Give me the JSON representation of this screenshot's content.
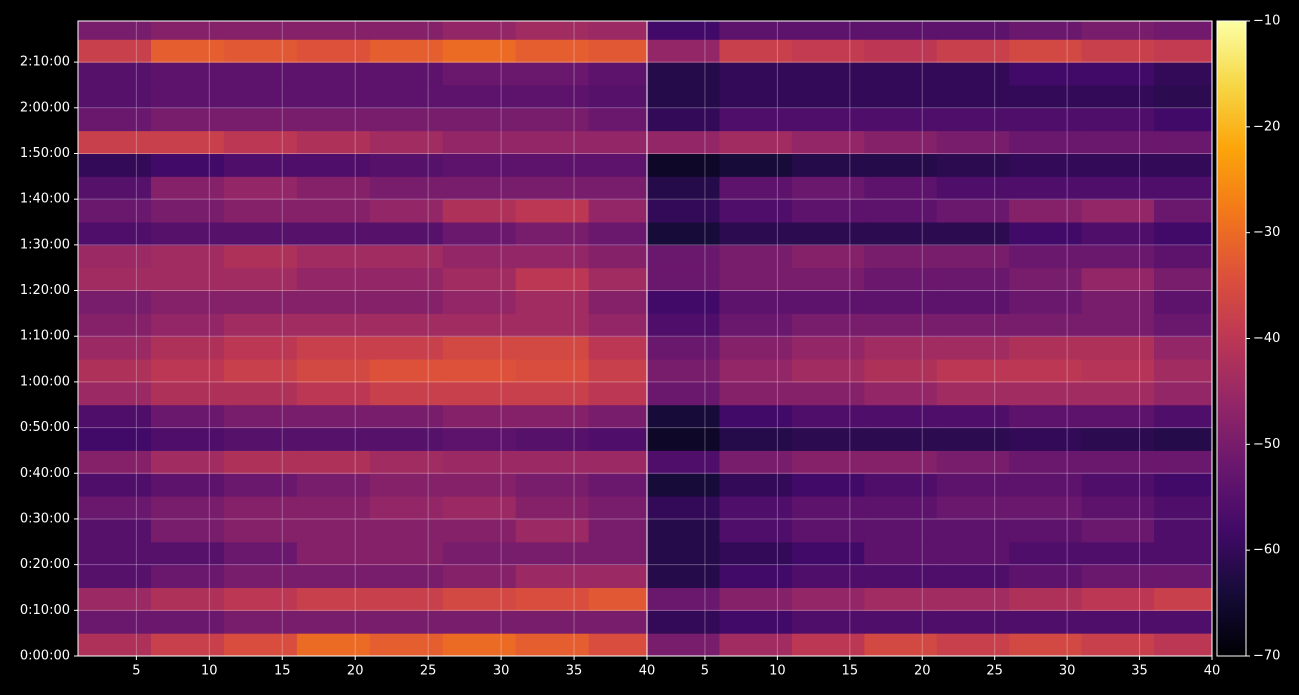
{
  "chart_data": {
    "type": "heatmap",
    "cmap": "inferno",
    "grid": true,
    "ylim": [
      0,
      8340
    ],
    "yticks": [
      {
        "value": 0,
        "label": "0:00:00"
      },
      {
        "value": 600,
        "label": "0:10:00"
      },
      {
        "value": 1200,
        "label": "0:20:00"
      },
      {
        "value": 1800,
        "label": "0:30:00"
      },
      {
        "value": 2400,
        "label": "0:40:00"
      },
      {
        "value": 3000,
        "label": "0:50:00"
      },
      {
        "value": 3600,
        "label": "1:00:00"
      },
      {
        "value": 4200,
        "label": "1:10:00"
      },
      {
        "value": 4800,
        "label": "1:20:00"
      },
      {
        "value": 5400,
        "label": "1:30:00"
      },
      {
        "value": 6000,
        "label": "1:40:00"
      },
      {
        "value": 6600,
        "label": "1:50:00"
      },
      {
        "value": 7200,
        "label": "2:00:00"
      },
      {
        "value": 7800,
        "label": "2:10:00"
      }
    ],
    "y_bins": [
      0,
      300,
      600,
      900,
      1200,
      1500,
      1800,
      2100,
      2400,
      2700,
      3000,
      3300,
      3600,
      3900,
      4200,
      4500,
      4800,
      5100,
      5400,
      5700,
      6000,
      6300,
      6600,
      6900,
      7200,
      7500,
      7800,
      8100,
      8340
    ],
    "colorbar": {
      "lim": [
        -70,
        -10
      ],
      "ticks": [
        {
          "value": -70,
          "label": "−70"
        },
        {
          "value": -60,
          "label": "−60"
        },
        {
          "value": -50,
          "label": "−50"
        },
        {
          "value": -40,
          "label": "−40"
        },
        {
          "value": -30,
          "label": "−30"
        },
        {
          "value": -20,
          "label": "−20"
        },
        {
          "value": -10,
          "label": "−10"
        }
      ]
    },
    "panels": [
      {
        "xlim": [
          1,
          40
        ],
        "xticks": [
          5,
          10,
          15,
          20,
          25,
          30,
          35,
          40
        ],
        "x_bins": [
          1,
          6,
          11,
          16,
          21,
          26,
          31,
          36,
          40
        ],
        "values": [
          [
            -42,
            -38,
            -35,
            -30,
            -32,
            -30,
            -32,
            -35
          ],
          [
            -52,
            -52,
            -50,
            -50,
            -50,
            -50,
            -50,
            -50
          ],
          [
            -45,
            -42,
            -40,
            -38,
            -38,
            -36,
            -35,
            -33
          ],
          [
            -55,
            -52,
            -50,
            -50,
            -50,
            -48,
            -45,
            -45
          ],
          [
            -55,
            -55,
            -52,
            -48,
            -48,
            -50,
            -50,
            -50
          ],
          [
            -55,
            -50,
            -48,
            -48,
            -48,
            -48,
            -45,
            -50
          ],
          [
            -52,
            -50,
            -48,
            -48,
            -46,
            -45,
            -48,
            -50
          ],
          [
            -56,
            -54,
            -52,
            -50,
            -48,
            -48,
            -50,
            -52
          ],
          [
            -48,
            -44,
            -42,
            -42,
            -44,
            -45,
            -45,
            -45
          ],
          [
            -58,
            -56,
            -55,
            -55,
            -55,
            -54,
            -55,
            -56
          ],
          [
            -56,
            -52,
            -50,
            -50,
            -50,
            -48,
            -48,
            -50
          ],
          [
            -45,
            -42,
            -42,
            -40,
            -38,
            -38,
            -38,
            -40
          ],
          [
            -42,
            -40,
            -38,
            -36,
            -34,
            -34,
            -35,
            -38
          ],
          [
            -45,
            -42,
            -40,
            -38,
            -38,
            -36,
            -36,
            -40
          ],
          [
            -48,
            -46,
            -44,
            -44,
            -44,
            -44,
            -44,
            -46
          ],
          [
            -50,
            -48,
            -48,
            -48,
            -48,
            -46,
            -44,
            -48
          ],
          [
            -44,
            -44,
            -44,
            -46,
            -46,
            -44,
            -40,
            -44
          ],
          [
            -45,
            -44,
            -42,
            -44,
            -44,
            -46,
            -46,
            -48
          ],
          [
            -56,
            -55,
            -55,
            -55,
            -55,
            -52,
            -50,
            -52
          ],
          [
            -52,
            -50,
            -48,
            -48,
            -46,
            -42,
            -40,
            -46
          ],
          [
            -55,
            -48,
            -46,
            -48,
            -50,
            -50,
            -50,
            -50
          ],
          [
            -60,
            -58,
            -56,
            -56,
            -55,
            -54,
            -54,
            -54
          ],
          [
            -38,
            -38,
            -40,
            -42,
            -44,
            -46,
            -46,
            -46
          ],
          [
            -52,
            -50,
            -50,
            -50,
            -50,
            -50,
            -50,
            -52
          ],
          [
            -55,
            -54,
            -54,
            -54,
            -54,
            -54,
            -54,
            -55
          ],
          [
            -55,
            -54,
            -54,
            -54,
            -54,
            -52,
            -52,
            -54
          ],
          [
            -38,
            -32,
            -33,
            -34,
            -32,
            -30,
            -32,
            -33
          ],
          [
            -50,
            -48,
            -48,
            -48,
            -48,
            -46,
            -44,
            -45
          ]
        ]
      },
      {
        "xlim": [
          1,
          40
        ],
        "xticks": [
          5,
          10,
          15,
          20,
          25,
          30,
          35,
          40
        ],
        "x_bins": [
          1,
          6,
          11,
          16,
          21,
          26,
          31,
          36,
          40
        ],
        "values": [
          [
            -50,
            -44,
            -40,
            -36,
            -38,
            -36,
            -38,
            -40
          ],
          [
            -60,
            -58,
            -56,
            -56,
            -56,
            -56,
            -56,
            -56
          ],
          [
            -52,
            -48,
            -46,
            -44,
            -44,
            -42,
            -40,
            -38
          ],
          [
            -62,
            -58,
            -56,
            -56,
            -56,
            -54,
            -52,
            -52
          ],
          [
            -62,
            -60,
            -58,
            -54,
            -54,
            -56,
            -56,
            -56
          ],
          [
            -62,
            -56,
            -54,
            -54,
            -54,
            -54,
            -52,
            -56
          ],
          [
            -60,
            -56,
            -54,
            -54,
            -52,
            -52,
            -54,
            -56
          ],
          [
            -64,
            -60,
            -58,
            -56,
            -54,
            -54,
            -56,
            -58
          ],
          [
            -56,
            -50,
            -48,
            -48,
            -50,
            -52,
            -52,
            -52
          ],
          [
            -66,
            -62,
            -61,
            -61,
            -61,
            -60,
            -61,
            -62
          ],
          [
            -64,
            -58,
            -56,
            -56,
            -56,
            -54,
            -54,
            -56
          ],
          [
            -52,
            -48,
            -48,
            -46,
            -44,
            -44,
            -44,
            -46
          ],
          [
            -50,
            -46,
            -44,
            -42,
            -40,
            -40,
            -41,
            -44
          ],
          [
            -52,
            -48,
            -46,
            -44,
            -44,
            -42,
            -42,
            -46
          ],
          [
            -56,
            -52,
            -50,
            -50,
            -50,
            -50,
            -50,
            -52
          ],
          [
            -58,
            -54,
            -54,
            -54,
            -54,
            -52,
            -50,
            -54
          ],
          [
            -52,
            -50,
            -50,
            -52,
            -52,
            -50,
            -46,
            -50
          ],
          [
            -52,
            -50,
            -48,
            -50,
            -50,
            -52,
            -52,
            -54
          ],
          [
            -64,
            -61,
            -61,
            -61,
            -61,
            -58,
            -56,
            -58
          ],
          [
            -60,
            -56,
            -54,
            -54,
            -52,
            -48,
            -46,
            -52
          ],
          [
            -62,
            -54,
            -52,
            -54,
            -56,
            -56,
            -56,
            -56
          ],
          [
            -66,
            -64,
            -62,
            -62,
            -61,
            -60,
            -60,
            -60
          ],
          [
            -46,
            -44,
            -46,
            -48,
            -50,
            -52,
            -52,
            -52
          ],
          [
            -60,
            -56,
            -56,
            -56,
            -56,
            -56,
            -56,
            -58
          ],
          [
            -62,
            -60,
            -60,
            -60,
            -60,
            -60,
            -60,
            -61
          ],
          [
            -62,
            -60,
            -60,
            -60,
            -60,
            -58,
            -58,
            -60
          ],
          [
            -46,
            -38,
            -39,
            -40,
            -38,
            -36,
            -38,
            -39
          ],
          [
            -58,
            -54,
            -54,
            -54,
            -54,
            -52,
            -50,
            -51
          ]
        ]
      }
    ]
  }
}
